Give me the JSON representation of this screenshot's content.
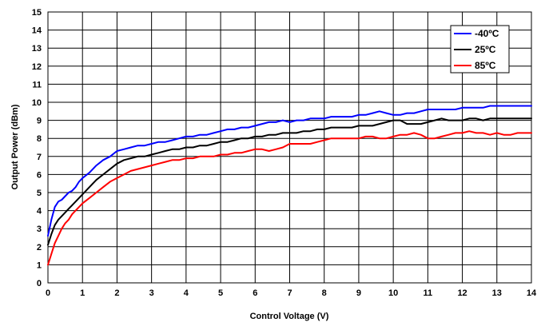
{
  "chart_data": {
    "type": "line",
    "xlabel": "Control Voltage (V)",
    "ylabel": "Output Power (dBm)",
    "xlim": [
      0,
      14
    ],
    "ylim": [
      0,
      15
    ],
    "xticks": [
      0,
      1,
      2,
      3,
      4,
      5,
      6,
      7,
      8,
      9,
      10,
      11,
      12,
      13,
      14
    ],
    "yticks": [
      0,
      1,
      2,
      3,
      4,
      5,
      6,
      7,
      8,
      9,
      10,
      11,
      12,
      13,
      14,
      15
    ],
    "grid": true,
    "legend_position": "top-right",
    "series": [
      {
        "name": "-40ºC",
        "color": "#0000ff",
        "x": [
          0,
          0.1,
          0.2,
          0.3,
          0.4,
          0.5,
          0.6,
          0.7,
          0.8,
          0.9,
          1.0,
          1.2,
          1.4,
          1.6,
          1.8,
          2.0,
          2.2,
          2.4,
          2.6,
          2.8,
          3.0,
          3.2,
          3.4,
          3.6,
          3.8,
          4.0,
          4.2,
          4.4,
          4.6,
          4.8,
          5.0,
          5.2,
          5.4,
          5.6,
          5.8,
          6.0,
          6.2,
          6.4,
          6.6,
          6.8,
          7.0,
          7.2,
          7.4,
          7.6,
          7.8,
          8.0,
          8.2,
          8.4,
          8.6,
          8.8,
          9.0,
          9.2,
          9.4,
          9.6,
          9.8,
          10.0,
          10.2,
          10.4,
          10.6,
          10.8,
          11.0,
          11.2,
          11.4,
          11.6,
          11.8,
          12.0,
          12.2,
          12.4,
          12.6,
          12.8,
          13.0,
          13.2,
          13.4,
          13.6,
          13.8,
          14.0
        ],
        "y": [
          2.6,
          3.5,
          4.2,
          4.5,
          4.6,
          4.8,
          5.0,
          5.1,
          5.3,
          5.6,
          5.8,
          6.1,
          6.5,
          6.8,
          7.0,
          7.3,
          7.4,
          7.5,
          7.6,
          7.6,
          7.7,
          7.8,
          7.8,
          7.9,
          8.0,
          8.1,
          8.1,
          8.2,
          8.2,
          8.3,
          8.4,
          8.5,
          8.5,
          8.6,
          8.6,
          8.7,
          8.8,
          8.9,
          8.9,
          9.0,
          8.9,
          9.0,
          9.0,
          9.1,
          9.1,
          9.1,
          9.2,
          9.2,
          9.2,
          9.2,
          9.3,
          9.3,
          9.4,
          9.5,
          9.4,
          9.3,
          9.3,
          9.4,
          9.4,
          9.5,
          9.6,
          9.6,
          9.6,
          9.6,
          9.6,
          9.7,
          9.7,
          9.7,
          9.7,
          9.8,
          9.8,
          9.8,
          9.8,
          9.8,
          9.8,
          9.8
        ]
      },
      {
        "name": "25ºC",
        "color": "#000000",
        "x": [
          0,
          0.1,
          0.2,
          0.3,
          0.4,
          0.5,
          0.6,
          0.7,
          0.8,
          0.9,
          1.0,
          1.2,
          1.4,
          1.6,
          1.8,
          2.0,
          2.2,
          2.4,
          2.6,
          2.8,
          3.0,
          3.2,
          3.4,
          3.6,
          3.8,
          4.0,
          4.2,
          4.4,
          4.6,
          4.8,
          5.0,
          5.2,
          5.4,
          5.6,
          5.8,
          6.0,
          6.2,
          6.4,
          6.6,
          6.8,
          7.0,
          7.2,
          7.4,
          7.6,
          7.8,
          8.0,
          8.2,
          8.4,
          8.6,
          8.8,
          9.0,
          9.2,
          9.4,
          9.6,
          9.8,
          10.0,
          10.2,
          10.4,
          10.6,
          10.8,
          11.0,
          11.2,
          11.4,
          11.6,
          11.8,
          12.0,
          12.2,
          12.4,
          12.6,
          12.8,
          13.0,
          13.2,
          13.4,
          13.6,
          13.8,
          14.0
        ],
        "y": [
          2.1,
          2.7,
          3.2,
          3.5,
          3.7,
          3.9,
          4.1,
          4.3,
          4.5,
          4.7,
          4.9,
          5.3,
          5.7,
          6.0,
          6.3,
          6.6,
          6.8,
          6.9,
          7.0,
          7.0,
          7.1,
          7.2,
          7.3,
          7.4,
          7.4,
          7.5,
          7.5,
          7.6,
          7.6,
          7.7,
          7.8,
          7.8,
          7.9,
          8.0,
          8.0,
          8.1,
          8.1,
          8.2,
          8.2,
          8.3,
          8.3,
          8.3,
          8.4,
          8.4,
          8.5,
          8.5,
          8.6,
          8.6,
          8.6,
          8.6,
          8.7,
          8.7,
          8.7,
          8.8,
          8.9,
          9.0,
          9.0,
          8.8,
          8.8,
          8.8,
          8.9,
          9.0,
          9.1,
          9.0,
          9.0,
          9.0,
          9.1,
          9.1,
          9.0,
          9.1,
          9.1,
          9.1,
          9.1,
          9.1,
          9.1,
          9.1
        ]
      },
      {
        "name": "85ºC",
        "color": "#ff0000",
        "x": [
          0,
          0.1,
          0.2,
          0.3,
          0.4,
          0.5,
          0.6,
          0.7,
          0.8,
          0.9,
          1.0,
          1.2,
          1.4,
          1.6,
          1.8,
          2.0,
          2.2,
          2.4,
          2.6,
          2.8,
          3.0,
          3.2,
          3.4,
          3.6,
          3.8,
          4.0,
          4.2,
          4.4,
          4.6,
          4.8,
          5.0,
          5.2,
          5.4,
          5.6,
          5.8,
          6.0,
          6.2,
          6.4,
          6.6,
          6.8,
          7.0,
          7.2,
          7.4,
          7.6,
          7.8,
          8.0,
          8.2,
          8.4,
          8.6,
          8.8,
          9.0,
          9.2,
          9.4,
          9.6,
          9.8,
          10.0,
          10.2,
          10.4,
          10.6,
          10.8,
          11.0,
          11.2,
          11.4,
          11.6,
          11.8,
          12.0,
          12.2,
          12.4,
          12.6,
          12.8,
          13.0,
          13.2,
          13.4,
          13.6,
          13.8,
          14.0
        ],
        "y": [
          1.0,
          1.6,
          2.2,
          2.6,
          3.0,
          3.3,
          3.5,
          3.8,
          4.0,
          4.2,
          4.4,
          4.7,
          5.0,
          5.3,
          5.6,
          5.8,
          6.0,
          6.2,
          6.3,
          6.4,
          6.5,
          6.6,
          6.7,
          6.8,
          6.8,
          6.9,
          6.9,
          7.0,
          7.0,
          7.0,
          7.1,
          7.1,
          7.2,
          7.2,
          7.3,
          7.4,
          7.4,
          7.3,
          7.4,
          7.5,
          7.7,
          7.7,
          7.7,
          7.7,
          7.8,
          7.9,
          8.0,
          8.0,
          8.0,
          8.0,
          8.0,
          8.1,
          8.1,
          8.0,
          8.0,
          8.1,
          8.2,
          8.2,
          8.3,
          8.2,
          8.0,
          8.0,
          8.1,
          8.2,
          8.3,
          8.3,
          8.4,
          8.3,
          8.3,
          8.2,
          8.3,
          8.2,
          8.2,
          8.3,
          8.3,
          8.3
        ]
      }
    ]
  }
}
